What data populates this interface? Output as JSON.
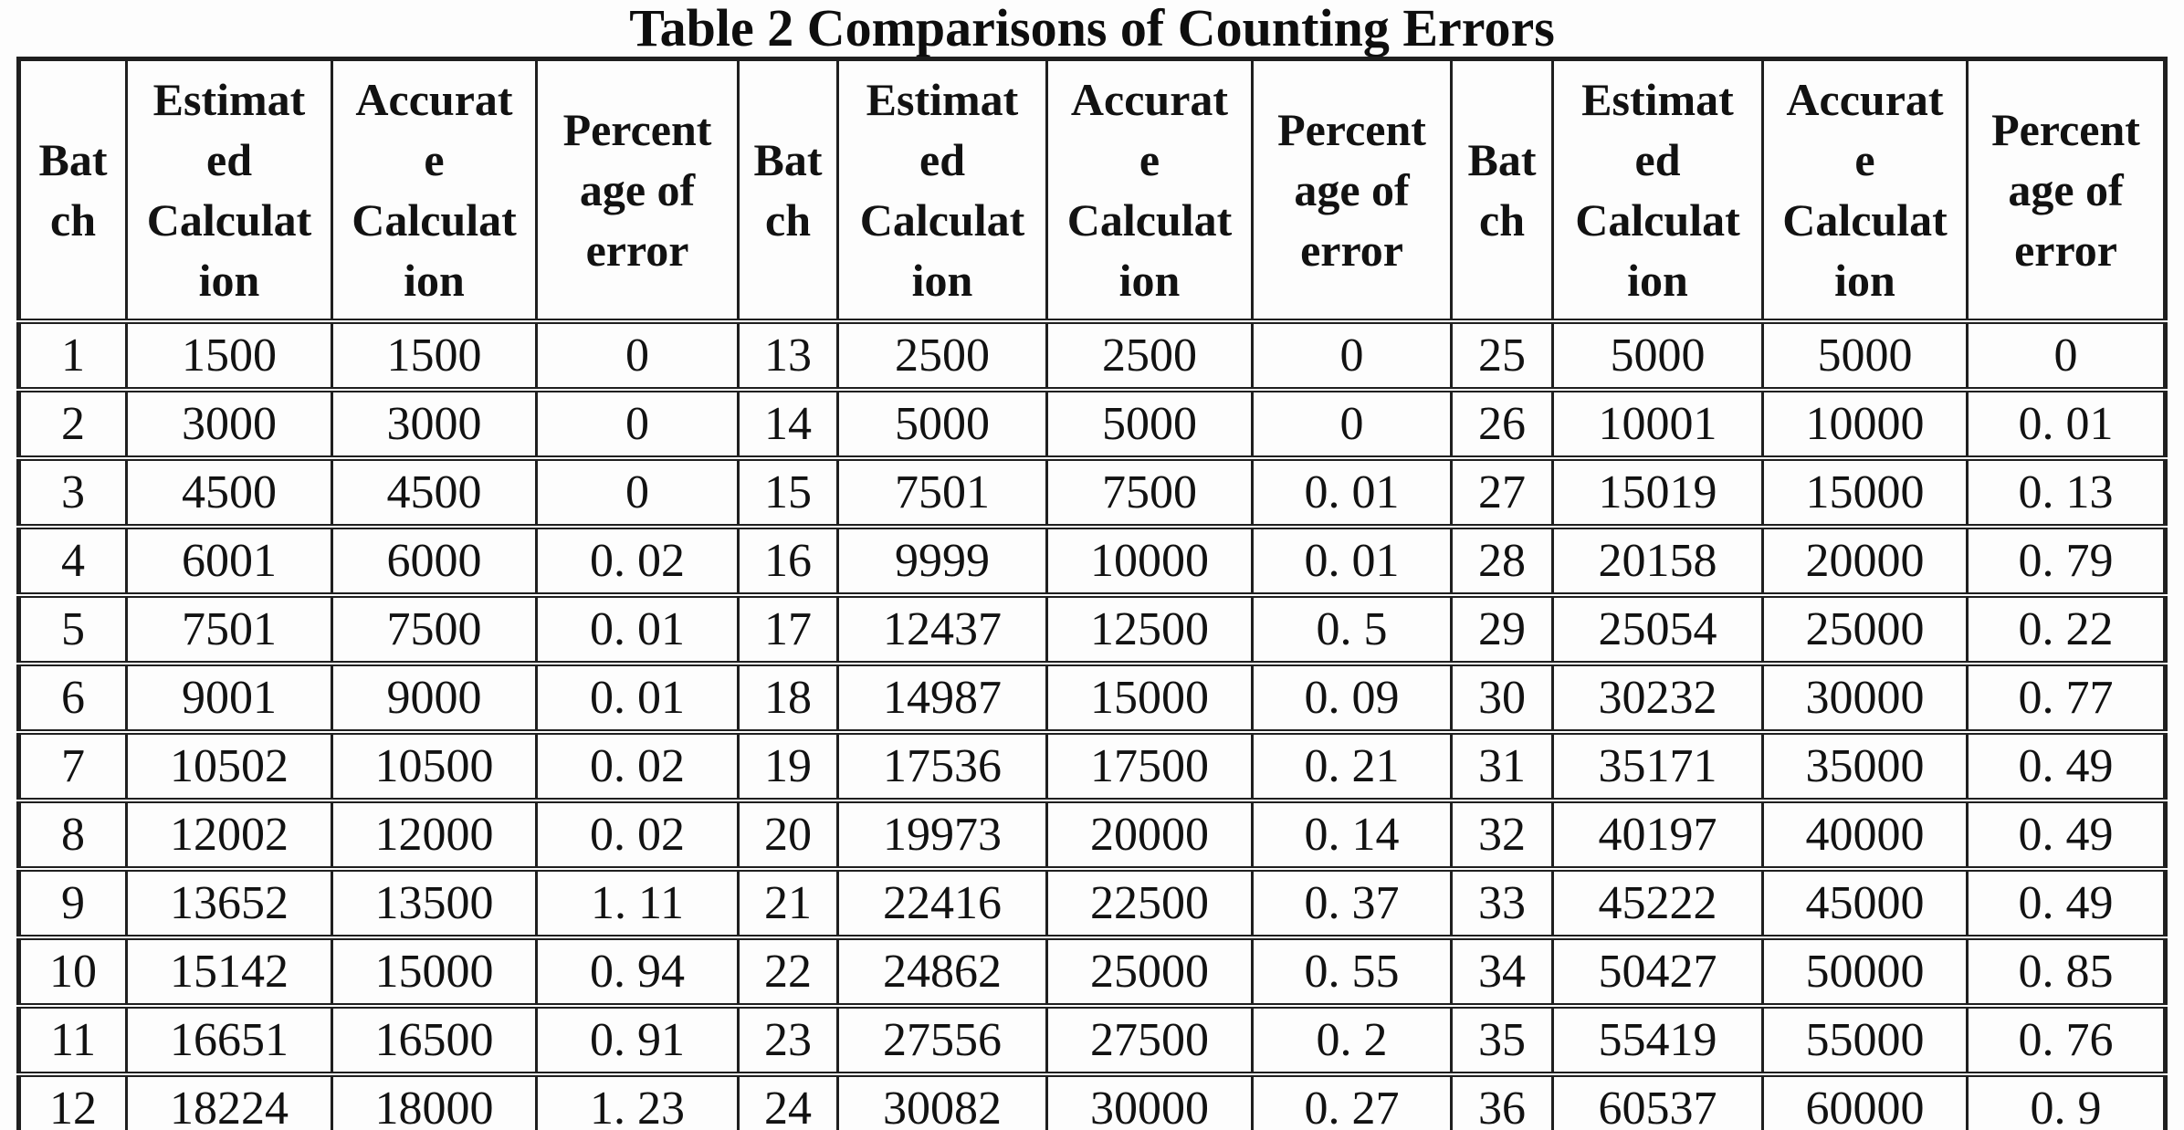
{
  "caption": "Table 2 Comparisons of Counting Errors",
  "colors": {
    "ink": "#121212",
    "border": "#1f1f1f",
    "background": "#fdfdfd"
  },
  "table": {
    "group_count": 3,
    "column_headers": [
      {
        "name": "batch",
        "label": "Bat\nch"
      },
      {
        "name": "estimated-calculation",
        "label": "Estimat\ned\nCalculat\nion"
      },
      {
        "name": "accurate-calculation",
        "label": "Accurat\ne\nCalculat\nion"
      },
      {
        "name": "percentage-of-error",
        "label": "Percent\nage of\nerror"
      }
    ],
    "rows": [
      [
        "1",
        "1500",
        "1500",
        "0",
        "13",
        "2500",
        "2500",
        "0",
        "25",
        "5000",
        "5000",
        "0"
      ],
      [
        "2",
        "3000",
        "3000",
        "0",
        "14",
        "5000",
        "5000",
        "0",
        "26",
        "10001",
        "10000",
        "0. 01"
      ],
      [
        "3",
        "4500",
        "4500",
        "0",
        "15",
        "7501",
        "7500",
        "0. 01",
        "27",
        "15019",
        "15000",
        "0. 13"
      ],
      [
        "4",
        "6001",
        "6000",
        "0. 02",
        "16",
        "9999",
        "10000",
        "0. 01",
        "28",
        "20158",
        "20000",
        "0. 79"
      ],
      [
        "5",
        "7501",
        "7500",
        "0. 01",
        "17",
        "12437",
        "12500",
        "0. 5",
        "29",
        "25054",
        "25000",
        "0. 22"
      ],
      [
        "6",
        "9001",
        "9000",
        "0. 01",
        "18",
        "14987",
        "15000",
        "0. 09",
        "30",
        "30232",
        "30000",
        "0. 77"
      ],
      [
        "7",
        "10502",
        "10500",
        "0. 02",
        "19",
        "17536",
        "17500",
        "0. 21",
        "31",
        "35171",
        "35000",
        "0. 49"
      ],
      [
        "8",
        "12002",
        "12000",
        "0. 02",
        "20",
        "19973",
        "20000",
        "0. 14",
        "32",
        "40197",
        "40000",
        "0. 49"
      ],
      [
        "9",
        "13652",
        "13500",
        "1. 11",
        "21",
        "22416",
        "22500",
        "0. 37",
        "33",
        "45222",
        "45000",
        "0. 49"
      ],
      [
        "10",
        "15142",
        "15000",
        "0. 94",
        "22",
        "24862",
        "25000",
        "0. 55",
        "34",
        "50427",
        "50000",
        "0. 85"
      ],
      [
        "11",
        "16651",
        "16500",
        "0. 91",
        "23",
        "27556",
        "27500",
        "0. 2",
        "35",
        "55419",
        "55000",
        "0. 76"
      ],
      [
        "12",
        "18224",
        "18000",
        "1. 23",
        "24",
        "30082",
        "30000",
        "0. 27",
        "36",
        "60537",
        "60000",
        "0. 9"
      ]
    ]
  },
  "chart_data": {
    "type": "table",
    "title": "Table 2 Comparisons of Counting Errors",
    "columns": [
      "Batch",
      "Estimated Calculation",
      "Accurate Calculation",
      "Percentage of error"
    ],
    "records": [
      [
        1,
        1500,
        1500,
        0
      ],
      [
        2,
        3000,
        3000,
        0
      ],
      [
        3,
        4500,
        4500,
        0
      ],
      [
        4,
        6001,
        6000,
        0.02
      ],
      [
        5,
        7501,
        7500,
        0.01
      ],
      [
        6,
        9001,
        9000,
        0.01
      ],
      [
        7,
        10502,
        10500,
        0.02
      ],
      [
        8,
        12002,
        12000,
        0.02
      ],
      [
        9,
        13652,
        13500,
        1.11
      ],
      [
        10,
        15142,
        15000,
        0.94
      ],
      [
        11,
        16651,
        16500,
        0.91
      ],
      [
        12,
        18224,
        18000,
        1.23
      ],
      [
        13,
        2500,
        2500,
        0
      ],
      [
        14,
        5000,
        5000,
        0
      ],
      [
        15,
        7501,
        7500,
        0.01
      ],
      [
        16,
        9999,
        10000,
        0.01
      ],
      [
        17,
        12437,
        12500,
        0.5
      ],
      [
        18,
        14987,
        15000,
        0.09
      ],
      [
        19,
        17536,
        17500,
        0.21
      ],
      [
        20,
        19973,
        20000,
        0.14
      ],
      [
        21,
        22416,
        22500,
        0.37
      ],
      [
        22,
        24862,
        25000,
        0.55
      ],
      [
        23,
        27556,
        27500,
        0.2
      ],
      [
        24,
        30082,
        30000,
        0.27
      ],
      [
        25,
        5000,
        5000,
        0
      ],
      [
        26,
        10001,
        10000,
        0.01
      ],
      [
        27,
        15019,
        15000,
        0.13
      ],
      [
        28,
        20158,
        20000,
        0.79
      ],
      [
        29,
        25054,
        25000,
        0.22
      ],
      [
        30,
        30232,
        30000,
        0.77
      ],
      [
        31,
        35171,
        35000,
        0.49
      ],
      [
        32,
        40197,
        40000,
        0.49
      ],
      [
        33,
        45222,
        45000,
        0.49
      ],
      [
        34,
        50427,
        50000,
        0.85
      ],
      [
        35,
        55419,
        55000,
        0.76
      ],
      [
        36,
        60537,
        60000,
        0.9
      ]
    ]
  }
}
